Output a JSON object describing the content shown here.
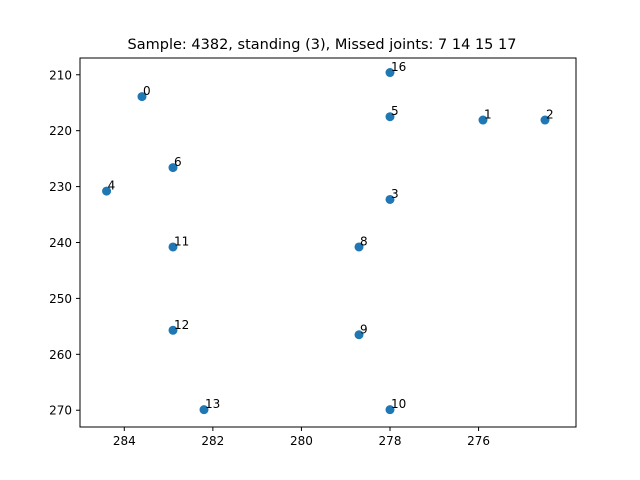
{
  "chart_data": {
    "type": "scatter",
    "title": "Sample: 4382, standing (3), Missed joints: 7  14  15  17",
    "xlabel": "",
    "ylabel": "",
    "xlim": [
      285,
      273.8
    ],
    "ylim": [
      273,
      207
    ],
    "x_inverted": true,
    "y_inverted": true,
    "grid": false,
    "marker_color": "#1f77b4",
    "x_ticks": [
      284,
      282,
      280,
      278,
      276
    ],
    "x_tick_labels": [
      "284",
      "282",
      "280",
      "278",
      "276"
    ],
    "y_ticks": [
      210,
      220,
      230,
      240,
      250,
      260,
      270
    ],
    "y_tick_labels": [
      "210",
      "220",
      "230",
      "240",
      "250",
      "260",
      "270"
    ],
    "points": [
      {
        "label": "0",
        "x": 283.6,
        "y": 213.9
      },
      {
        "label": "1",
        "x": 275.9,
        "y": 218.1
      },
      {
        "label": "2",
        "x": 274.5,
        "y": 218.1
      },
      {
        "label": "3",
        "x": 278.0,
        "y": 232.3
      },
      {
        "label": "4",
        "x": 284.4,
        "y": 230.8
      },
      {
        "label": "5",
        "x": 278.0,
        "y": 217.5
      },
      {
        "label": "6",
        "x": 282.9,
        "y": 226.6
      },
      {
        "label": "8",
        "x": 278.7,
        "y": 240.8
      },
      {
        "label": "9",
        "x": 278.7,
        "y": 256.5
      },
      {
        "label": "10",
        "x": 278.0,
        "y": 269.9
      },
      {
        "label": "11",
        "x": 282.9,
        "y": 240.8
      },
      {
        "label": "12",
        "x": 282.9,
        "y": 255.7
      },
      {
        "label": "13",
        "x": 282.2,
        "y": 269.9
      },
      {
        "label": "16",
        "x": 278.0,
        "y": 209.6
      }
    ]
  }
}
